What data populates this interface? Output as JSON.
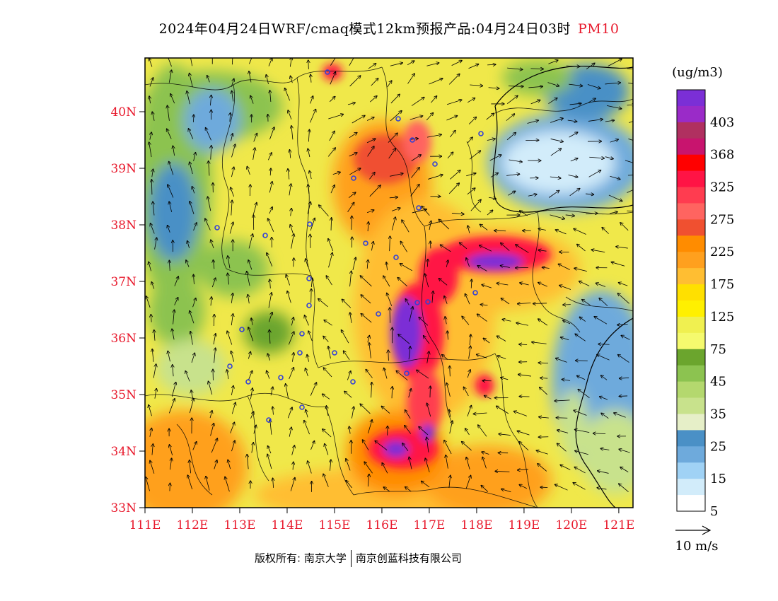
{
  "header": {
    "title": "2024年04月24日WRF/cmaq模式12km预报产品:04月24日03时",
    "pollutant": "PM10"
  },
  "map": {
    "lat_labels": [
      "40N",
      "39N",
      "38N",
      "37N",
      "36N",
      "35N",
      "34N",
      "33N"
    ],
    "lon_labels": [
      "111E",
      "112E",
      "113E",
      "114E",
      "115E",
      "116E",
      "117E",
      "118E",
      "119E",
      "120E",
      "121E"
    ],
    "lat_range": [
      33,
      40.95
    ],
    "lon_range": [
      111,
      121.3
    ]
  },
  "legend": {
    "unit": "(ug/m3)",
    "levels": [
      {
        "label": "",
        "color": "#7b2fd6"
      },
      {
        "label": "403",
        "color": "#9a2bc8"
      },
      {
        "label": "",
        "color": "#b03060"
      },
      {
        "label": "368",
        "color": "#c8146e"
      },
      {
        "label": "",
        "color": "#ff0000"
      },
      {
        "label": "325",
        "color": "#ff1445"
      },
      {
        "label": "",
        "color": "#ff3c50"
      },
      {
        "label": "275",
        "color": "#ff6460"
      },
      {
        "label": "",
        "color": "#f05030"
      },
      {
        "label": "225",
        "color": "#ff8c00"
      },
      {
        "label": "",
        "color": "#ffa01e"
      },
      {
        "label": "175",
        "color": "#ffbe32"
      },
      {
        "label": "",
        "color": "#ffe000"
      },
      {
        "label": "125",
        "color": "#fff000"
      },
      {
        "label": "",
        "color": "#f0f050"
      },
      {
        "label": "75",
        "color": "#f5fa6e"
      },
      {
        "label": "",
        "color": "#6ba52d"
      },
      {
        "label": "45",
        "color": "#8cc350"
      },
      {
        "label": "",
        "color": "#b4d86e"
      },
      {
        "label": "35",
        "color": "#c8e28c"
      },
      {
        "label": "",
        "color": "#e6efc8"
      },
      {
        "label": "25",
        "color": "#4a90c6"
      },
      {
        "label": "",
        "color": "#6eaadc"
      },
      {
        "label": "15",
        "color": "#a0d2f5"
      },
      {
        "label": "",
        "color": "#d2ecfa"
      },
      {
        "label": "5",
        "color": "#ffffff"
      }
    ]
  },
  "wind_scale": {
    "label": "10 m/s"
  },
  "footer": {
    "copyright": "版权所有: 南京大学",
    "company": "南京创蓝科技有限公司"
  },
  "colors": {
    "tick": "#e8192c",
    "station_marker": "#3340d8"
  },
  "icons": {
    "wind_vector": "arrow-icon",
    "station": "station-marker-icon"
  }
}
